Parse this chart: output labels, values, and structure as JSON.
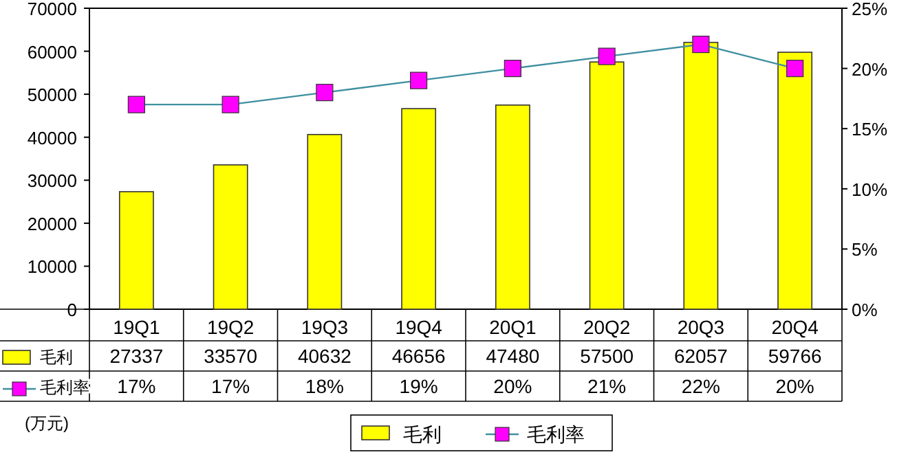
{
  "chart_data": {
    "type": "bar",
    "categories": [
      "19Q1",
      "19Q2",
      "19Q3",
      "19Q4",
      "20Q1",
      "20Q2",
      "20Q3",
      "20Q4"
    ],
    "series": [
      {
        "name": "毛利",
        "color": "#ffff00",
        "values": [
          27337,
          33570,
          40632,
          46656,
          47480,
          57500,
          62057,
          59766
        ],
        "value_labels": [
          "27337",
          "33570",
          "40632",
          "46656",
          "47480",
          "57500",
          "62057",
          "59766"
        ]
      },
      {
        "name": "毛利率",
        "type": "line",
        "axis": "y2",
        "color": "#3f8fa0",
        "marker": "square",
        "values": [
          17,
          17,
          18,
          19,
          20,
          21,
          22,
          20
        ],
        "value_labels": [
          "17%",
          "17%",
          "18%",
          "19%",
          "20%",
          "21%",
          "22%",
          "20%"
        ]
      }
    ],
    "ylim": [
      0,
      70000
    ],
    "yticks": [
      0,
      10000,
      20000,
      30000,
      40000,
      50000,
      60000,
      70000
    ],
    "y2lim": [
      0,
      25
    ],
    "y2ticks": [
      {
        "value": 0,
        "label": "0%"
      },
      {
        "value": 5,
        "label": "5%"
      },
      {
        "value": 10,
        "label": "10%"
      },
      {
        "value": 15,
        "label": "15%"
      },
      {
        "value": 20,
        "label": "20%"
      },
      {
        "value": 25,
        "label": "25%"
      }
    ],
    "annotations": [
      "(万元)"
    ],
    "legend": "bottom",
    "grid": false
  }
}
